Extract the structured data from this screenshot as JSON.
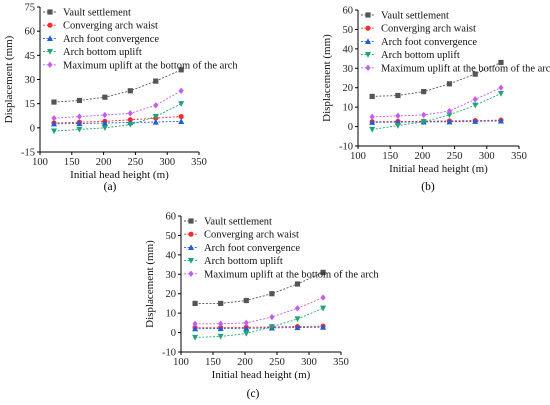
{
  "chart_data": [
    {
      "type": "line",
      "panel_label": "(a)",
      "xlabel": "Initial head height (m)",
      "ylabel": "Displacement (mm)",
      "xlim": [
        100,
        350
      ],
      "ylim": [
        -15,
        75
      ],
      "xticks": [
        100,
        150,
        200,
        250,
        300,
        350
      ],
      "yticks": [
        -15,
        0,
        15,
        30,
        45,
        60,
        75
      ],
      "x": [
        122,
        162,
        202,
        242,
        282,
        322
      ],
      "legend": "top-left",
      "series": [
        {
          "name": "Vault settlement",
          "color": "#555555",
          "marker": "square",
          "values": [
            16,
            17,
            19,
            23,
            29,
            36
          ]
        },
        {
          "name": "Converging arch waist",
          "color": "#ff2a2a",
          "marker": "circle",
          "values": [
            3,
            3.5,
            4,
            5,
            6,
            7
          ]
        },
        {
          "name": "Arch foot convergence",
          "color": "#1f5fd6",
          "marker": "triangle-up",
          "values": [
            2.5,
            2.7,
            3,
            3.3,
            3.6,
            4
          ]
        },
        {
          "name": "Arch bottom uplift",
          "color": "#1ea37a",
          "marker": "triangle-down",
          "values": [
            -2,
            -1,
            0,
            2,
            7,
            15
          ]
        },
        {
          "name": "Maximum uplift at the bottom of the arch",
          "color": "#c45cf0",
          "marker": "diamond",
          "values": [
            6,
            7,
            8,
            9,
            14,
            23
          ]
        }
      ]
    },
    {
      "type": "line",
      "panel_label": "(b)",
      "xlabel": "Initial head height (m)",
      "ylabel": "Displacement (mm)",
      "xlim": [
        100,
        350
      ],
      "ylim": [
        -10,
        60
      ],
      "xticks": [
        100,
        150,
        200,
        250,
        300,
        350
      ],
      "yticks": [
        -10,
        0,
        10,
        20,
        30,
        40,
        50,
        60
      ],
      "x": [
        122,
        162,
        202,
        242,
        282,
        322
      ],
      "legend": "top-left",
      "series": [
        {
          "name": "Vault settlement",
          "color": "#555555",
          "marker": "square",
          "values": [
            15.5,
            16,
            18,
            22,
            27,
            33
          ]
        },
        {
          "name": "Converging arch waist",
          "color": "#ff2a2a",
          "marker": "circle",
          "values": [
            2.5,
            2.6,
            2.7,
            2.9,
            3.1,
            3.3
          ]
        },
        {
          "name": "Arch foot convergence",
          "color": "#1f5fd6",
          "marker": "triangle-up",
          "values": [
            2.2,
            2.3,
            2.4,
            2.5,
            2.7,
            2.9
          ]
        },
        {
          "name": "Arch bottom uplift",
          "color": "#1ea37a",
          "marker": "triangle-down",
          "values": [
            -1.5,
            0.5,
            2.5,
            6,
            11,
            17
          ]
        },
        {
          "name": "Maximum uplift at the bottom of the arch",
          "color": "#c45cf0",
          "marker": "diamond",
          "values": [
            5,
            5.5,
            6,
            8,
            14,
            20
          ]
        }
      ]
    },
    {
      "type": "line",
      "panel_label": "(c)",
      "xlabel": "Initial head height (m)",
      "ylabel": "Displacement (mm)",
      "xlim": [
        100,
        350
      ],
      "ylim": [
        -10,
        60
      ],
      "xticks": [
        100,
        150,
        200,
        250,
        300,
        350
      ],
      "yticks": [
        -10,
        0,
        10,
        20,
        30,
        40,
        50,
        60
      ],
      "x": [
        122,
        162,
        202,
        242,
        282,
        322
      ],
      "legend": "top-left",
      "series": [
        {
          "name": "Vault settlement",
          "color": "#555555",
          "marker": "square",
          "values": [
            15,
            15,
            16.5,
            20,
            25,
            31
          ]
        },
        {
          "name": "Converging arch waist",
          "color": "#ff2a2a",
          "marker": "circle",
          "values": [
            2.5,
            2.5,
            2.7,
            2.9,
            3.1,
            3.3
          ]
        },
        {
          "name": "Arch foot convergence",
          "color": "#1f5fd6",
          "marker": "triangle-up",
          "values": [
            2,
            2.1,
            2.2,
            2.4,
            2.6,
            2.8
          ]
        },
        {
          "name": "Arch bottom uplift",
          "color": "#1ea37a",
          "marker": "triangle-down",
          "values": [
            -2.5,
            -2,
            -0.5,
            3,
            7,
            12.5
          ]
        },
        {
          "name": "Maximum uplift at the bottom of the arch",
          "color": "#c45cf0",
          "marker": "diamond",
          "values": [
            4.5,
            4.5,
            5,
            8,
            12.5,
            18
          ]
        }
      ]
    }
  ]
}
